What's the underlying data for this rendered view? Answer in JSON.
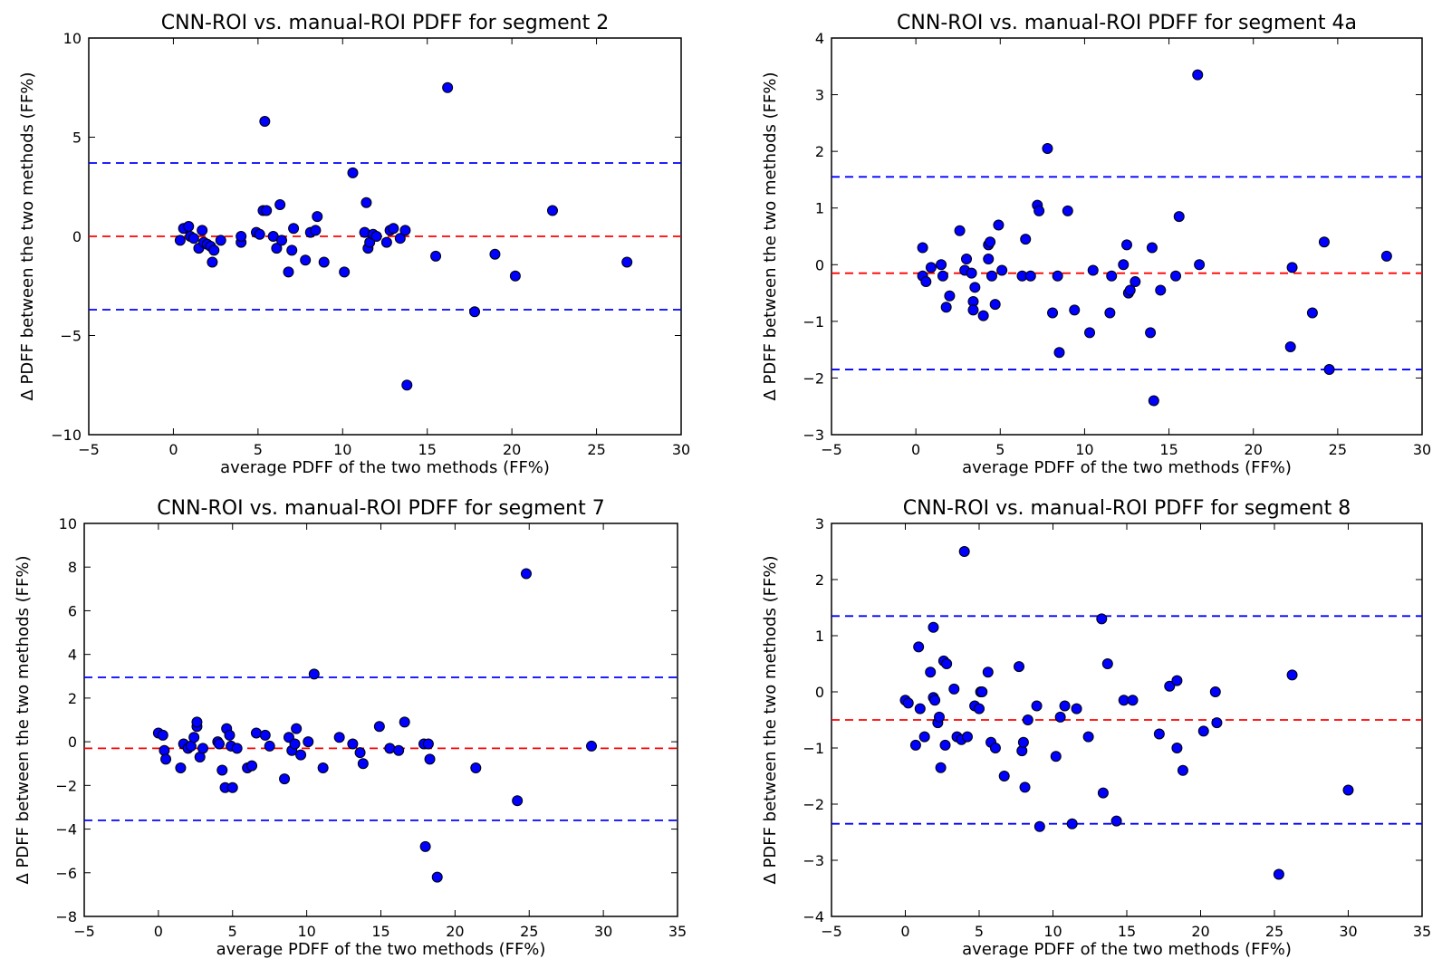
{
  "chart_data": [
    {
      "type": "scatter",
      "title": "CNN-ROI vs. manual-ROI PDFF for segment 2",
      "xlabel": "average PDFF of the two methods (FF%)",
      "ylabel": "Δ PDFF between the two methods (FF%)",
      "xlim": [
        -5,
        30
      ],
      "ylim": [
        -10,
        10
      ],
      "xticks": [
        -5,
        0,
        5,
        10,
        15,
        20,
        25,
        30
      ],
      "yticks": [
        -10,
        -5,
        0,
        5,
        10
      ],
      "mean_line": 0.0,
      "limits_of_agreement": [
        3.7,
        -3.7
      ],
      "points": [
        [
          0.4,
          -0.2
        ],
        [
          0.6,
          0.4
        ],
        [
          0.9,
          0.5
        ],
        [
          1.0,
          0.0
        ],
        [
          1.2,
          -0.1
        ],
        [
          1.5,
          -0.6
        ],
        [
          1.7,
          0.3
        ],
        [
          1.8,
          -0.3
        ],
        [
          2.0,
          -0.4
        ],
        [
          2.2,
          -0.5
        ],
        [
          2.3,
          -1.3
        ],
        [
          2.4,
          -0.7
        ],
        [
          2.8,
          -0.2
        ],
        [
          4.0,
          -0.3
        ],
        [
          4.0,
          0.0
        ],
        [
          4.9,
          0.2
        ],
        [
          5.1,
          0.1
        ],
        [
          5.3,
          1.3
        ],
        [
          5.4,
          5.8
        ],
        [
          5.5,
          1.3
        ],
        [
          5.9,
          0.0
        ],
        [
          6.1,
          -0.6
        ],
        [
          6.3,
          1.6
        ],
        [
          6.4,
          -0.2
        ],
        [
          6.8,
          -1.8
        ],
        [
          7.1,
          0.4
        ],
        [
          7.0,
          -0.7
        ],
        [
          7.8,
          -1.2
        ],
        [
          8.1,
          0.2
        ],
        [
          8.4,
          0.3
        ],
        [
          8.5,
          1.0
        ],
        [
          8.9,
          -1.3
        ],
        [
          10.1,
          -1.8
        ],
        [
          10.6,
          3.2
        ],
        [
          11.3,
          0.2
        ],
        [
          11.4,
          1.7
        ],
        [
          11.5,
          -0.6
        ],
        [
          11.6,
          -0.3
        ],
        [
          11.8,
          0.1
        ],
        [
          12.0,
          0.0
        ],
        [
          12.6,
          -0.3
        ],
        [
          12.8,
          0.3
        ],
        [
          13.0,
          0.4
        ],
        [
          13.4,
          -0.1
        ],
        [
          13.7,
          0.3
        ],
        [
          13.8,
          -7.5
        ],
        [
          15.5,
          -1.0
        ],
        [
          16.2,
          7.5
        ],
        [
          17.8,
          -3.8
        ],
        [
          19.0,
          -0.9
        ],
        [
          20.2,
          -2.0
        ],
        [
          22.4,
          1.3
        ],
        [
          26.8,
          -1.3
        ]
      ]
    },
    {
      "type": "scatter",
      "title": "CNN-ROI vs. manual-ROI PDFF for segment 4a",
      "xlabel": "average PDFF of the two methods (FF%)",
      "ylabel": "Δ PDFF between the two methods (FF%)",
      "xlim": [
        -5,
        30
      ],
      "ylim": [
        -3,
        4
      ],
      "xticks": [
        -5,
        0,
        5,
        10,
        15,
        20,
        25,
        30
      ],
      "yticks": [
        -3,
        -2,
        -1,
        0,
        1,
        2,
        3,
        4
      ],
      "mean_line": -0.15,
      "limits_of_agreement": [
        1.55,
        -1.85
      ],
      "points": [
        [
          0.4,
          -0.2
        ],
        [
          0.4,
          0.3
        ],
        [
          0.6,
          -0.3
        ],
        [
          0.9,
          -0.05
        ],
        [
          1.5,
          0.0
        ],
        [
          1.6,
          -0.2
        ],
        [
          1.8,
          -0.75
        ],
        [
          2.0,
          -0.55
        ],
        [
          2.6,
          0.6
        ],
        [
          2.9,
          -0.1
        ],
        [
          3.0,
          0.1
        ],
        [
          3.3,
          -0.15
        ],
        [
          3.4,
          -0.65
        ],
        [
          3.4,
          -0.8
        ],
        [
          3.5,
          -0.4
        ],
        [
          4.0,
          -0.9
        ],
        [
          4.3,
          0.1
        ],
        [
          4.3,
          0.35
        ],
        [
          4.4,
          0.4
        ],
        [
          4.5,
          -0.2
        ],
        [
          4.7,
          -0.7
        ],
        [
          4.9,
          0.7
        ],
        [
          5.1,
          -0.1
        ],
        [
          6.3,
          -0.2
        ],
        [
          6.5,
          0.45
        ],
        [
          6.8,
          -0.2
        ],
        [
          7.2,
          1.05
        ],
        [
          7.3,
          0.95
        ],
        [
          7.8,
          2.05
        ],
        [
          8.1,
          -0.85
        ],
        [
          8.4,
          -0.2
        ],
        [
          8.5,
          -1.55
        ],
        [
          9.0,
          0.95
        ],
        [
          9.4,
          -0.8
        ],
        [
          10.3,
          -1.2
        ],
        [
          10.5,
          -0.1
        ],
        [
          11.5,
          -0.85
        ],
        [
          11.6,
          -0.2
        ],
        [
          12.3,
          0.0
        ],
        [
          12.5,
          0.35
        ],
        [
          12.6,
          -0.5
        ],
        [
          12.7,
          -0.45
        ],
        [
          13.0,
          -0.3
        ],
        [
          13.9,
          -1.2
        ],
        [
          14.0,
          0.3
        ],
        [
          14.1,
          -2.4
        ],
        [
          14.5,
          -0.45
        ],
        [
          15.4,
          -0.2
        ],
        [
          15.6,
          0.85
        ],
        [
          16.7,
          3.35
        ],
        [
          16.8,
          0.0
        ],
        [
          22.2,
          -1.45
        ],
        [
          22.3,
          -0.05
        ],
        [
          23.5,
          -0.85
        ],
        [
          24.2,
          0.4
        ],
        [
          24.5,
          -1.85
        ],
        [
          27.9,
          0.15
        ]
      ]
    },
    {
      "type": "scatter",
      "title": "CNN-ROI vs. manual-ROI PDFF for segment 7",
      "xlabel": "average PDFF of the two methods (FF%)",
      "ylabel": "Δ PDFF between the two methods (FF%)",
      "xlim": [
        -5,
        35
      ],
      "ylim": [
        -8,
        10
      ],
      "xticks": [
        -5,
        0,
        5,
        10,
        15,
        20,
        25,
        30,
        35
      ],
      "yticks": [
        -8,
        -6,
        -4,
        -2,
        0,
        2,
        4,
        6,
        8,
        10
      ],
      "mean_line": -0.3,
      "limits_of_agreement": [
        2.95,
        -3.6
      ],
      "points": [
        [
          0.0,
          0.4
        ],
        [
          0.3,
          0.3
        ],
        [
          0.4,
          -0.4
        ],
        [
          0.5,
          -0.8
        ],
        [
          1.5,
          -1.2
        ],
        [
          1.7,
          -0.1
        ],
        [
          2.0,
          -0.3
        ],
        [
          2.2,
          -0.2
        ],
        [
          2.4,
          0.2
        ],
        [
          2.6,
          0.7
        ],
        [
          2.6,
          0.9
        ],
        [
          2.8,
          -0.7
        ],
        [
          3.0,
          -0.3
        ],
        [
          4.0,
          0.0
        ],
        [
          4.1,
          -0.1
        ],
        [
          4.3,
          -1.3
        ],
        [
          4.5,
          -2.1
        ],
        [
          4.6,
          0.6
        ],
        [
          4.8,
          0.3
        ],
        [
          4.9,
          -0.2
        ],
        [
          5.0,
          -2.1
        ],
        [
          5.3,
          -0.3
        ],
        [
          6.0,
          -1.2
        ],
        [
          6.3,
          -1.1
        ],
        [
          6.6,
          0.4
        ],
        [
          7.2,
          0.3
        ],
        [
          7.5,
          -0.2
        ],
        [
          8.5,
          -1.7
        ],
        [
          8.8,
          0.2
        ],
        [
          9.0,
          -0.4
        ],
        [
          9.2,
          -0.1
        ],
        [
          9.3,
          0.6
        ],
        [
          9.6,
          -0.6
        ],
        [
          10.1,
          0.0
        ],
        [
          10.5,
          3.1
        ],
        [
          11.1,
          -1.2
        ],
        [
          12.2,
          0.2
        ],
        [
          13.1,
          -0.1
        ],
        [
          13.6,
          -0.5
        ],
        [
          13.8,
          -1.0
        ],
        [
          14.9,
          0.7
        ],
        [
          15.6,
          -0.3
        ],
        [
          16.2,
          -0.4
        ],
        [
          16.6,
          0.9
        ],
        [
          17.9,
          -0.1
        ],
        [
          18.0,
          -4.8
        ],
        [
          18.2,
          -0.1
        ],
        [
          18.3,
          -0.8
        ],
        [
          18.8,
          -6.2
        ],
        [
          21.4,
          -1.2
        ],
        [
          24.2,
          -2.7
        ],
        [
          24.8,
          7.7
        ],
        [
          29.2,
          -0.2
        ]
      ]
    },
    {
      "type": "scatter",
      "title": "CNN-ROI vs. manual-ROI PDFF for segment 8",
      "xlabel": "average PDFF of the two methods (FF%)",
      "ylabel": "Δ PDFF between the two methods (FF%)",
      "xlim": [
        -5,
        35
      ],
      "ylim": [
        -4,
        3
      ],
      "xticks": [
        -5,
        0,
        5,
        10,
        15,
        20,
        25,
        30,
        35
      ],
      "yticks": [
        -4,
        -3,
        -2,
        -1,
        0,
        1,
        2,
        3
      ],
      "mean_line": -0.5,
      "limits_of_agreement": [
        1.35,
        -2.35
      ],
      "points": [
        [
          0.0,
          -0.15
        ],
        [
          0.2,
          -0.2
        ],
        [
          0.7,
          -0.95
        ],
        [
          0.9,
          0.8
        ],
        [
          1.0,
          -0.3
        ],
        [
          1.3,
          -0.8
        ],
        [
          1.7,
          0.35
        ],
        [
          1.9,
          1.15
        ],
        [
          1.9,
          -0.1
        ],
        [
          2.0,
          -0.15
        ],
        [
          2.2,
          -0.55
        ],
        [
          2.3,
          -0.45
        ],
        [
          2.4,
          -1.35
        ],
        [
          2.6,
          0.55
        ],
        [
          2.7,
          -0.95
        ],
        [
          2.8,
          0.5
        ],
        [
          3.3,
          0.05
        ],
        [
          3.5,
          -0.8
        ],
        [
          3.8,
          -0.85
        ],
        [
          4.0,
          2.5
        ],
        [
          4.2,
          -0.8
        ],
        [
          4.7,
          -0.25
        ],
        [
          5.0,
          -0.3
        ],
        [
          5.1,
          0.0
        ],
        [
          5.2,
          0.0
        ],
        [
          5.6,
          0.35
        ],
        [
          5.8,
          -0.9
        ],
        [
          6.1,
          -1.0
        ],
        [
          6.7,
          -1.5
        ],
        [
          7.7,
          0.45
        ],
        [
          7.9,
          -1.05
        ],
        [
          8.0,
          -0.9
        ],
        [
          8.1,
          -1.7
        ],
        [
          8.3,
          -0.5
        ],
        [
          8.9,
          -0.25
        ],
        [
          9.1,
          -2.4
        ],
        [
          10.2,
          -1.15
        ],
        [
          10.5,
          -0.45
        ],
        [
          10.8,
          -0.25
        ],
        [
          11.3,
          -2.35
        ],
        [
          11.6,
          -0.3
        ],
        [
          12.4,
          -0.8
        ],
        [
          13.3,
          1.3
        ],
        [
          13.4,
          -1.8
        ],
        [
          13.7,
          0.5
        ],
        [
          14.3,
          -2.3
        ],
        [
          14.8,
          -0.15
        ],
        [
          15.4,
          -0.15
        ],
        [
          17.2,
          -0.75
        ],
        [
          17.9,
          0.1
        ],
        [
          18.4,
          0.2
        ],
        [
          18.4,
          -1.0
        ],
        [
          18.8,
          -1.4
        ],
        [
          20.2,
          -0.7
        ],
        [
          21.0,
          0.0
        ],
        [
          21.1,
          -0.55
        ],
        [
          25.3,
          -3.25
        ],
        [
          26.2,
          0.3
        ],
        [
          30.0,
          -1.75
        ]
      ]
    }
  ]
}
